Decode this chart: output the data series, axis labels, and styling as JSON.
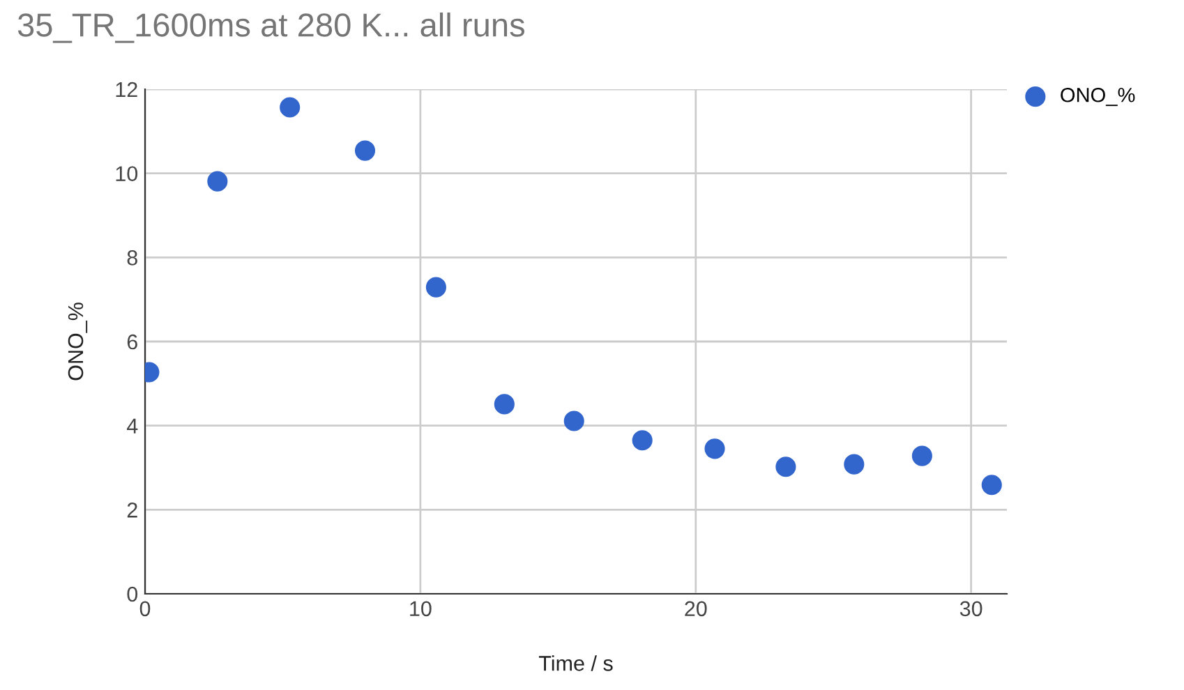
{
  "chart_data": {
    "type": "scatter",
    "title": "35_TR_1600ms at 280 K... all runs",
    "xlabel": "Time / s",
    "ylabel": "ONO_%",
    "x": [
      0.15,
      2.63,
      5.26,
      7.99,
      10.57,
      13.05,
      15.58,
      18.06,
      20.69,
      23.27,
      25.75,
      28.22,
      30.75
    ],
    "series": [
      {
        "name": "ONO_%",
        "color": "#3366cc",
        "values": [
          5.27,
          9.81,
          11.57,
          10.54,
          7.29,
          4.51,
          4.11,
          3.65,
          3.45,
          3.02,
          3.08,
          3.28,
          2.59
        ]
      }
    ],
    "xlim": [
      0,
      31.3
    ],
    "xticks": [
      0,
      10,
      20,
      30
    ],
    "ylim": [
      0,
      12
    ],
    "yticks": [
      0,
      2,
      4,
      6,
      8,
      10,
      12
    ],
    "grid": true,
    "legend": "top right",
    "marker": "circle"
  }
}
